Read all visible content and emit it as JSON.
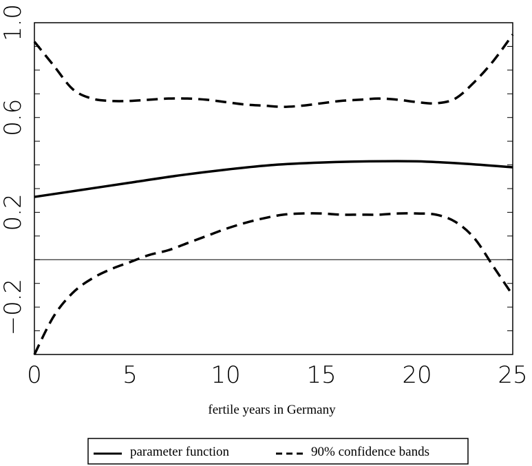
{
  "chart_data": {
    "type": "line",
    "xlabel": "fertile years in Germany",
    "ylabel": "",
    "xlim": [
      0,
      25
    ],
    "ylim": [
      -0.4,
      1.0
    ],
    "x_ticks": [
      0,
      5,
      10,
      15,
      20,
      25
    ],
    "x_tick_labels": [
      "0",
      "5",
      "10",
      "15",
      "20",
      "25"
    ],
    "y_ticks": [
      -0.2,
      0.2,
      0.6,
      1.0
    ],
    "y_tick_labels": [
      "-0.2",
      "0.2",
      "0.6",
      "1.0"
    ],
    "y_minor_ticks": [
      -0.4,
      -0.3,
      -0.2,
      -0.1,
      0.0,
      0.1,
      0.2,
      0.3,
      0.4,
      0.5,
      0.6,
      0.7,
      0.8,
      0.9,
      1.0
    ],
    "reference_line_y": 0.0,
    "grid": false,
    "legend_position": "bottom",
    "series": [
      {
        "name": "parameter function",
        "style": "solid",
        "color": "#000000",
        "x": [
          0,
          2.5,
          5,
          7.5,
          10,
          12.5,
          15,
          17.5,
          20,
          22.5,
          25
        ],
        "y": [
          0.265,
          0.295,
          0.325,
          0.355,
          0.38,
          0.4,
          0.41,
          0.415,
          0.415,
          0.405,
          0.39
        ]
      },
      {
        "name": "90% confidence bands",
        "style": "dashed",
        "color": "#000000",
        "x": [
          0,
          1,
          2,
          3,
          4,
          5,
          6,
          7,
          8,
          9,
          10,
          11,
          12,
          13,
          14,
          15,
          16,
          17,
          18,
          19,
          20,
          21,
          22,
          23,
          24,
          25
        ],
        "y": [
          0.92,
          0.82,
          0.72,
          0.68,
          0.67,
          0.67,
          0.675,
          0.68,
          0.68,
          0.675,
          0.665,
          0.655,
          0.65,
          0.645,
          0.65,
          0.66,
          0.67,
          0.675,
          0.68,
          0.675,
          0.665,
          0.66,
          0.68,
          0.75,
          0.84,
          0.95
        ]
      },
      {
        "name": "",
        "style": "dashed",
        "color": "#000000",
        "x": [
          0,
          1,
          2,
          3,
          4,
          5,
          6,
          7,
          8,
          9,
          10,
          11,
          12,
          13,
          14,
          15,
          16,
          17,
          18,
          19,
          20,
          21,
          22,
          23,
          24,
          25
        ],
        "y": [
          -0.4,
          -0.24,
          -0.14,
          -0.08,
          -0.04,
          -0.01,
          0.02,
          0.04,
          0.07,
          0.1,
          0.13,
          0.155,
          0.175,
          0.19,
          0.195,
          0.195,
          0.19,
          0.19,
          0.19,
          0.195,
          0.195,
          0.19,
          0.16,
          0.09,
          -0.03,
          -0.15
        ]
      }
    ]
  }
}
